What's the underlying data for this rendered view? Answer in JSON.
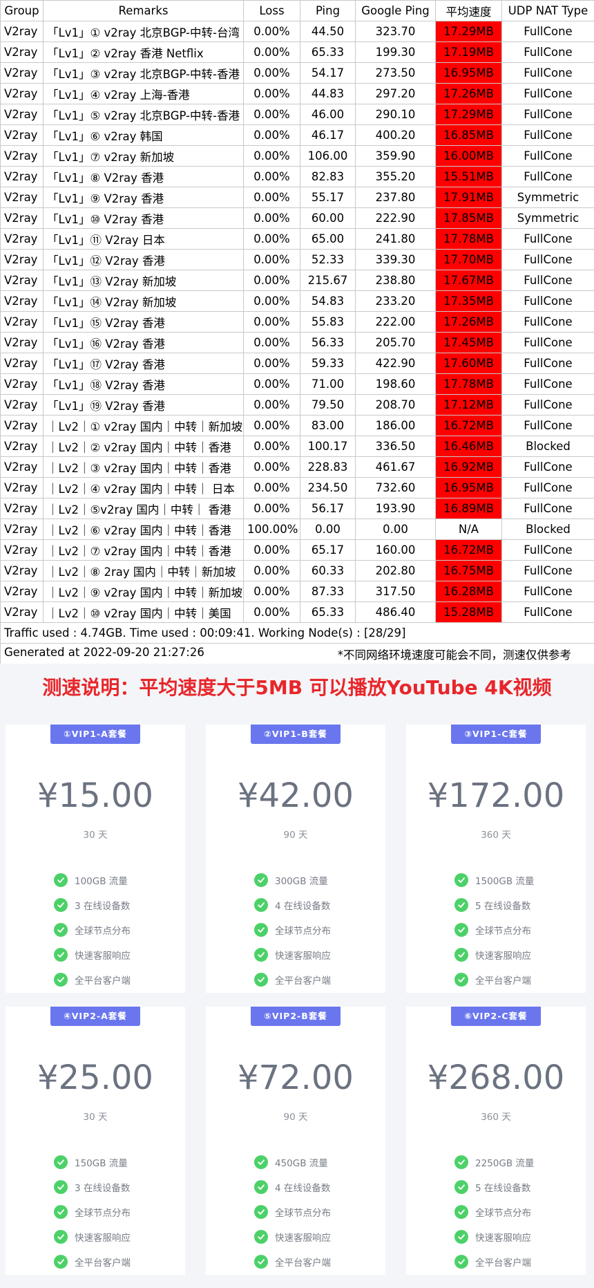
{
  "table": {
    "headers": [
      "Group",
      "Remarks",
      "Loss",
      "Ping",
      "Google Ping",
      "平均速度",
      "UDP NAT Type"
    ],
    "rows": [
      {
        "group": "V2ray",
        "remarks": "「Lv1」① v2ray 北京BGP-中转-台湾",
        "loss": "0.00%",
        "ping": "44.50",
        "gping": "323.70",
        "speed": "17.29MB",
        "nat": "FullCone"
      },
      {
        "group": "V2ray",
        "remarks": "「Lv1」② v2ray 香港 Netflix",
        "loss": "0.00%",
        "ping": "65.33",
        "gping": "199.30",
        "speed": "17.19MB",
        "nat": "FullCone"
      },
      {
        "group": "V2ray",
        "remarks": "「Lv1」③ v2ray 北京BGP-中转-香港",
        "loss": "0.00%",
        "ping": "54.17",
        "gping": "273.50",
        "speed": "16.95MB",
        "nat": "FullCone"
      },
      {
        "group": "V2ray",
        "remarks": "「Lv1」④ v2ray 上海-香港",
        "loss": "0.00%",
        "ping": "44.83",
        "gping": "297.20",
        "speed": "17.26MB",
        "nat": "FullCone"
      },
      {
        "group": "V2ray",
        "remarks": "「Lv1」⑤ v2ray 北京BGP-中转-香港",
        "loss": "0.00%",
        "ping": "46.00",
        "gping": "290.10",
        "speed": "17.29MB",
        "nat": "FullCone"
      },
      {
        "group": "V2ray",
        "remarks": "「Lv1」⑥ v2ray 韩国",
        "loss": "0.00%",
        "ping": "46.17",
        "gping": "400.20",
        "speed": "16.85MB",
        "nat": "FullCone"
      },
      {
        "group": "V2ray",
        "remarks": "「Lv1」⑦ v2ray 新加坡",
        "loss": "0.00%",
        "ping": "106.00",
        "gping": "359.90",
        "speed": "16.00MB",
        "nat": "FullCone"
      },
      {
        "group": "V2ray",
        "remarks": "「Lv1」⑧ V2ray 香港",
        "loss": "0.00%",
        "ping": "82.83",
        "gping": "355.20",
        "speed": "15.51MB",
        "nat": "FullCone"
      },
      {
        "group": "V2ray",
        "remarks": "「Lv1」⑨ V2ray 香港",
        "loss": "0.00%",
        "ping": "55.17",
        "gping": "237.80",
        "speed": "17.91MB",
        "nat": "Symmetric"
      },
      {
        "group": "V2ray",
        "remarks": "「Lv1」⑩ V2ray 香港",
        "loss": "0.00%",
        "ping": "60.00",
        "gping": "222.90",
        "speed": "17.85MB",
        "nat": "Symmetric"
      },
      {
        "group": "V2ray",
        "remarks": "「Lv1」⑪ V2ray 日本",
        "loss": "0.00%",
        "ping": "65.00",
        "gping": "241.80",
        "speed": "17.78MB",
        "nat": "FullCone"
      },
      {
        "group": "V2ray",
        "remarks": "「Lv1」⑫ V2ray 香港",
        "loss": "0.00%",
        "ping": "52.33",
        "gping": "339.30",
        "speed": "17.70MB",
        "nat": "FullCone"
      },
      {
        "group": "V2ray",
        "remarks": "「Lv1」⑬ V2ray 新加坡",
        "loss": "0.00%",
        "ping": "215.67",
        "gping": "238.80",
        "speed": "17.67MB",
        "nat": "FullCone"
      },
      {
        "group": "V2ray",
        "remarks": "「Lv1」⑭ V2ray 新加坡",
        "loss": "0.00%",
        "ping": "54.83",
        "gping": "233.20",
        "speed": "17.35MB",
        "nat": "FullCone"
      },
      {
        "group": "V2ray",
        "remarks": "「Lv1」⑮ V2ray 香港",
        "loss": "0.00%",
        "ping": "55.83",
        "gping": "222.00",
        "speed": "17.26MB",
        "nat": "FullCone"
      },
      {
        "group": "V2ray",
        "remarks": "「Lv1」⑯ V2ray 香港",
        "loss": "0.00%",
        "ping": "56.33",
        "gping": "205.70",
        "speed": "17.45MB",
        "nat": "FullCone"
      },
      {
        "group": "V2ray",
        "remarks": "「Lv1」⑰ V2ray 香港",
        "loss": "0.00%",
        "ping": "59.33",
        "gping": "422.90",
        "speed": "17.60MB",
        "nat": "FullCone"
      },
      {
        "group": "V2ray",
        "remarks": "「Lv1」⑱ V2ray 香港",
        "loss": "0.00%",
        "ping": "71.00",
        "gping": "198.60",
        "speed": "17.78MB",
        "nat": "FullCone"
      },
      {
        "group": "V2ray",
        "remarks": "「Lv1」⑲ V2ray 香港",
        "loss": "0.00%",
        "ping": "79.50",
        "gping": "208.70",
        "speed": "17.12MB",
        "nat": "FullCone"
      },
      {
        "group": "V2ray",
        "remarks": "｜Lv2｜① v2ray 国内｜中转｜新加坡",
        "loss": "0.00%",
        "ping": "83.00",
        "gping": "186.00",
        "speed": "16.72MB",
        "nat": "FullCone"
      },
      {
        "group": "V2ray",
        "remarks": "｜Lv2｜② v2ray 国内｜中转｜香港",
        "loss": "0.00%",
        "ping": "100.17",
        "gping": "336.50",
        "speed": "16.46MB",
        "nat": "Blocked"
      },
      {
        "group": "V2ray",
        "remarks": "｜Lv2｜③ v2ray 国内｜中转｜香港",
        "loss": "0.00%",
        "ping": "228.83",
        "gping": "461.67",
        "speed": "16.92MB",
        "nat": "FullCone"
      },
      {
        "group": "V2ray",
        "remarks": "｜Lv2｜④ v2ray 国内｜中转｜ 日本",
        "loss": "0.00%",
        "ping": "234.50",
        "gping": "732.60",
        "speed": "16.95MB",
        "nat": "FullCone"
      },
      {
        "group": "V2ray",
        "remarks": "｜Lv2｜⑤v2ray 国内｜中转｜ 香港",
        "loss": "0.00%",
        "ping": "56.17",
        "gping": "193.90",
        "speed": "16.89MB",
        "nat": "FullCone"
      },
      {
        "group": "V2ray",
        "remarks": "｜Lv2｜⑥ v2ray 国内｜中转｜香港",
        "loss": "100.00%",
        "ping": "0.00",
        "gping": "0.00",
        "speed": "N/A",
        "nat": "Blocked"
      },
      {
        "group": "V2ray",
        "remarks": "｜Lv2｜⑦ v2ray 国内｜中转｜香港",
        "loss": "0.00%",
        "ping": "65.17",
        "gping": "160.00",
        "speed": "16.72MB",
        "nat": "FullCone"
      },
      {
        "group": "V2ray",
        "remarks": "｜Lv2｜⑧ 2ray 国内｜中转｜新加坡",
        "loss": "0.00%",
        "ping": "60.33",
        "gping": "202.80",
        "speed": "16.75MB",
        "nat": "FullCone"
      },
      {
        "group": "V2ray",
        "remarks": "｜Lv2｜⑨ v2ray 国内｜中转｜新加坡",
        "loss": "0.00%",
        "ping": "87.33",
        "gping": "317.50",
        "speed": "16.28MB",
        "nat": "FullCone"
      },
      {
        "group": "V2ray",
        "remarks": "｜Lv2｜⑩ v2ray 国内｜中转｜美国",
        "loss": "0.00%",
        "ping": "65.33",
        "gping": "486.40",
        "speed": "15.28MB",
        "nat": "FullCone"
      }
    ],
    "traffic_line": "Traffic used : 4.74GB. Time used : 00:09:41. Working Node(s) : [28/29]",
    "generated_line": "Generated at 2022-09-20 21:27:26",
    "disclaimer": "*不同网络环境速度可能会不同，测速仅供参考"
  },
  "notice": "测速说明：平均速度大于5MB 可以播放YouTube 4K视频",
  "plans": [
    {
      "badge": "①VIP1-A套餐",
      "price": "¥15.00",
      "period": "30 天",
      "features": [
        "100GB 流量",
        "3 在线设备数",
        "全球节点分布",
        "快速客服响应",
        "全平台客户端"
      ]
    },
    {
      "badge": "②VIP1-B套餐",
      "price": "¥42.00",
      "period": "90 天",
      "features": [
        "300GB 流量",
        "4 在线设备数",
        "全球节点分布",
        "快速客服响应",
        "全平台客户端"
      ]
    },
    {
      "badge": "③VIP1-C套餐",
      "price": "¥172.00",
      "period": "360 天",
      "features": [
        "1500GB 流量",
        "5 在线设备数",
        "全球节点分布",
        "快速客服响应",
        "全平台客户端"
      ]
    },
    {
      "badge": "④VIP2-A套餐",
      "price": "¥25.00",
      "period": "30 天",
      "features": [
        "150GB 流量",
        "3 在线设备数",
        "全球节点分布",
        "快速客服响应",
        "全平台客户端"
      ]
    },
    {
      "badge": "⑤VIP2-B套餐",
      "price": "¥72.00",
      "period": "90 天",
      "features": [
        "450GB 流量",
        "4 在线设备数",
        "全球节点分布",
        "快速客服响应",
        "全平台客户端"
      ]
    },
    {
      "badge": "⑥VIP2-C套餐",
      "price": "¥268.00",
      "period": "360 天",
      "features": [
        "2250GB 流量",
        "5 在线设备数",
        "全球节点分布",
        "快速客服响应",
        "全平台客户端"
      ]
    }
  ],
  "colors": {
    "speed_cell": "#ff0000",
    "badge": "#6a76ee",
    "check": "#4cd168",
    "notice": "#e8262a"
  },
  "icons": {
    "feature": "check-circle-icon"
  }
}
